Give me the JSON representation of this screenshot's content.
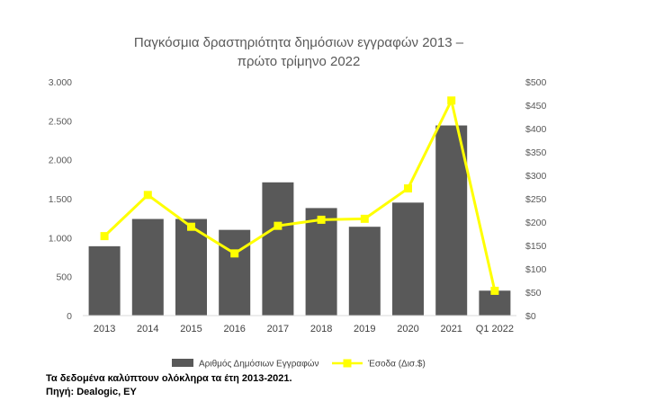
{
  "chart_data": {
    "type": "bar",
    "title": [
      "Παγκόσμια δραστηριότητα δημόσιων εγγραφών 2013 –",
      "πρώτο τρίμηνο 2022"
    ],
    "categories": [
      "2013",
      "2014",
      "2015",
      "2016",
      "2017",
      "2018",
      "2019",
      "2020",
      "2021",
      "Q1 2022"
    ],
    "series": [
      {
        "name": "Αριθμός Δημόσιων Εγγραφών",
        "type": "bar",
        "axis": "left",
        "values": [
          890,
          1240,
          1240,
          1100,
          1710,
          1380,
          1140,
          1450,
          2440,
          320
        ]
      },
      {
        "name": "Έσοδα (Δισ.$)",
        "type": "line",
        "axis": "right",
        "values": [
          170,
          258,
          190,
          133,
          192,
          205,
          207,
          272,
          460,
          53
        ]
      }
    ],
    "y_left": {
      "ylim": [
        0,
        3000
      ],
      "ticks": [
        0,
        500,
        1000,
        1500,
        2000,
        2500,
        3000
      ],
      "tick_labels": [
        "0",
        "500",
        "1.000",
        "1.500",
        "2.000",
        "2.500",
        "3.000"
      ]
    },
    "y_right": {
      "ylim": [
        0,
        500
      ],
      "ticks": [
        0,
        50,
        100,
        150,
        200,
        250,
        300,
        350,
        400,
        450,
        500
      ],
      "tick_labels": [
        "$0",
        "$50",
        "$100",
        "$150",
        "$200",
        "$250",
        "$300",
        "$350",
        "$400",
        "$450",
        "$500"
      ]
    },
    "grid": false,
    "legend": "bottom",
    "colors": {
      "bars": "#595959",
      "line": "#FFFF00",
      "markers": "#FFFF00",
      "axis": "#D9D9D9"
    }
  },
  "footnotes": {
    "coverage": "Τα δεδομένα καλύπτουν ολόκληρα τα έτη 2013-2021.",
    "source": "Πηγή: Dealogic, EY"
  }
}
